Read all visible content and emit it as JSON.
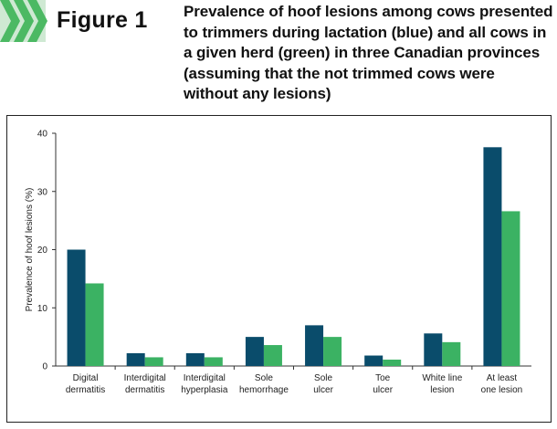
{
  "figure_badge": {
    "label": "Figure 1"
  },
  "caption": "Prevalence of hoof lesions among cows presented to trimmers during lactation (blue) and all cows in a given herd (green) in three Canadian provinces (assuming that the not trimmed cows were without any lesions)",
  "colors": {
    "badge_green": "#4cb963",
    "badge_light": "#cfe9d3",
    "series_blue": "#0a4c6b",
    "series_green": "#3bb263",
    "axis": "#333333"
  },
  "chart_data": {
    "type": "bar",
    "categories": [
      [
        "Digital",
        "dermatitis"
      ],
      [
        "Interdigital",
        "dermatitis"
      ],
      [
        "Interdigital",
        "hyperplasia"
      ],
      [
        "Sole",
        "hemorrhage"
      ],
      [
        "Sole",
        "ulcer"
      ],
      [
        "Toe",
        "ulcer"
      ],
      [
        "White line",
        "lesion"
      ],
      [
        "At least",
        "one lesion"
      ]
    ],
    "series": [
      {
        "color": "#0a4c6b",
        "values": [
          20,
          2.2,
          2.2,
          5,
          7,
          1.8,
          5.6,
          37.6
        ]
      },
      {
        "color": "#3bb263",
        "values": [
          14.2,
          1.5,
          1.5,
          3.6,
          5,
          1.1,
          4.1,
          26.6
        ]
      }
    ],
    "ylabel": "Prevalence of hoof lesions (%)",
    "ylim": [
      0,
      40
    ],
    "yticks": [
      "0",
      "10",
      "20",
      "30",
      "40"
    ],
    "grid": false,
    "legend": "none"
  }
}
